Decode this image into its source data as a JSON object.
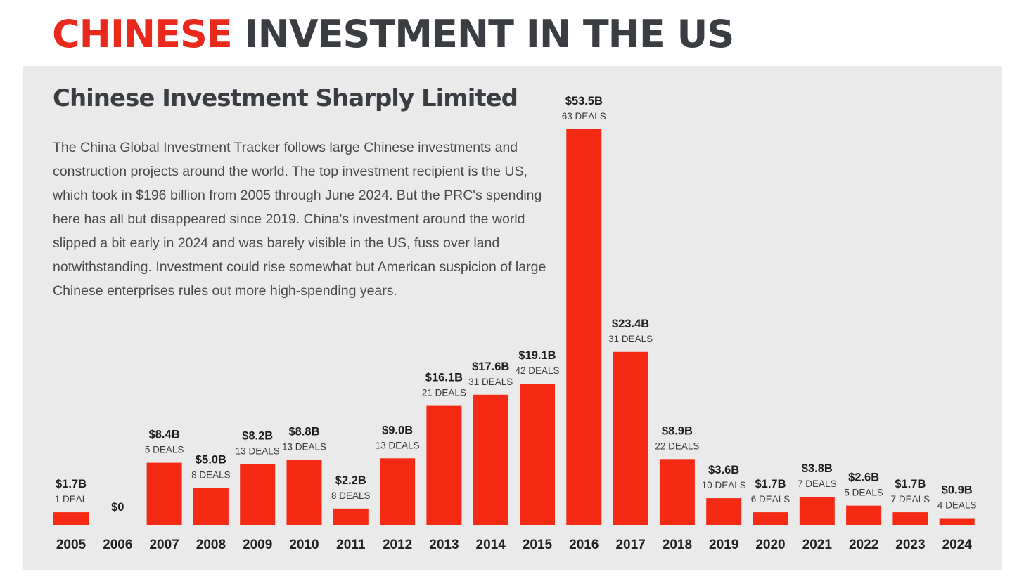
{
  "headline": {
    "highlight": "CHINESE",
    "rest": "INVESTMENT IN THE US"
  },
  "panel": {
    "subtitle": "Chinese Investment Sharply Limited",
    "description": "The China Global Investment Tracker follows large Chinese investments and construction projects around the world. The top investment recipient is the US, which took in $196 billion from 2005 through June 2024. But the PRC's spending here has all but disappeared since 2019. China's investment around the world slipped a bit early in 2024 and was barely visible in the US, fuss over land notwithstanding. Investment could rise somewhat but American suspicion of large Chinese enterprises rules out more high-spending years."
  },
  "colors": {
    "bar": "#f42a14",
    "headline_accent": "#e8291c",
    "headline_dark": "#3a3d42",
    "panel_background": "#eaeaea"
  },
  "chart_data": {
    "type": "bar",
    "title": "Chinese Investment Sharply Limited",
    "unit": "billion USD",
    "categories": [
      "2005",
      "2006",
      "2007",
      "2008",
      "2009",
      "2010",
      "2011",
      "2012",
      "2013",
      "2014",
      "2015",
      "2016",
      "2017",
      "2018",
      "2019",
      "2020",
      "2021",
      "2022",
      "2023",
      "2024"
    ],
    "values": [
      1.7,
      0,
      8.4,
      5.0,
      8.2,
      8.8,
      2.2,
      9.0,
      16.1,
      17.6,
      19.1,
      53.5,
      23.4,
      8.9,
      3.6,
      1.7,
      3.8,
      2.6,
      1.7,
      0.9
    ],
    "value_labels": [
      "$1.7B",
      "$0",
      "$8.4B",
      "$5.0B",
      "$8.2B",
      "$8.8B",
      "$2.2B",
      "$9.0B",
      "$16.1B",
      "$17.6B",
      "$19.1B",
      "$53.5B",
      "$23.4B",
      "$8.9B",
      "$3.6B",
      "$1.7B",
      "$3.8B",
      "$2.6B",
      "$1.7B",
      "$0.9B"
    ],
    "deal_labels": [
      "1 DEAL",
      "",
      "5 DEALS",
      "8 DEALS",
      "13 DEALS",
      "13 DEALS",
      "8 DEALS",
      "13 DEALS",
      "21 DEALS",
      "31 DEALS",
      "42 DEALS",
      "63 DEALS",
      "31 DEALS",
      "22 DEALS",
      "10 DEALS",
      "6 DEALS",
      "7 DEALS",
      "5 DEALS",
      "7 DEALS",
      "4 DEALS"
    ],
    "ylim": [
      0,
      53.5
    ],
    "grid": false,
    "legend": "none"
  }
}
